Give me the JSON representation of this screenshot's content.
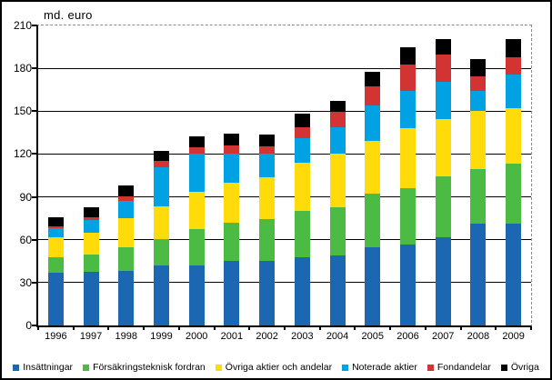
{
  "title": "md. euro",
  "colors": {
    "insattningar": "#1B67B2",
    "forsakringsteknisk_fordran": "#4CBB44",
    "ovriga_aktier_och_andelar": "#FFDB0A",
    "noterade_aktier": "#00A2E4",
    "fondandelar": "#D23434",
    "ovriga": "#000000",
    "gridline": "#000000",
    "plot_dashed_border": "#8C8C8C"
  },
  "chart_data": {
    "type": "bar",
    "stacked": true,
    "title": "md. euro",
    "xlabel": "",
    "ylabel": "md. euro",
    "ylim": [
      0,
      210
    ],
    "yticks": [
      0,
      30,
      60,
      90,
      120,
      150,
      180,
      210
    ],
    "grid": true,
    "legend_position": "bottom",
    "categories": [
      "1996",
      "1997",
      "1998",
      "1999",
      "2000",
      "2001",
      "2002",
      "2003",
      "2004",
      "2005",
      "2006",
      "2007",
      "2008",
      "2009"
    ],
    "series": [
      {
        "name": "Insättningar",
        "color": "#1B67B2",
        "values": [
          37,
          37.5,
          38,
          42,
          42,
          45,
          45.5,
          48,
          49,
          54.5,
          56.5,
          62,
          71,
          71.5
        ]
      },
      {
        "name": "Försäkringsteknisk fordran",
        "color": "#4CBB44",
        "values": [
          10.5,
          12,
          16.5,
          18.5,
          25.5,
          27,
          29,
          32,
          34,
          37.5,
          39.5,
          42.5,
          38.5,
          41.5
        ]
      },
      {
        "name": "Övriga aktier och andelar",
        "color": "#FFDB0A",
        "values": [
          14,
          15.5,
          20.5,
          23,
          26,
          28,
          29,
          34,
          37,
          37,
          42,
          40,
          40.5,
          39
        ]
      },
      {
        "name": "Noterade aktier",
        "color": "#00A2E4",
        "values": [
          6.5,
          9,
          12.5,
          27.5,
          26.5,
          20.5,
          16.5,
          17,
          19,
          25,
          26.5,
          26,
          14.5,
          23.5
        ]
      },
      {
        "name": "Fondandelar",
        "color": "#D23434",
        "values": [
          1.5,
          1.5,
          3,
          4,
          4.5,
          5.5,
          5.5,
          7.5,
          10.5,
          13.5,
          18,
          19,
          10,
          12.5
        ]
      },
      {
        "name": "Övriga",
        "color": "#000000",
        "values": [
          6.5,
          7,
          7.5,
          7.5,
          8,
          8,
          8,
          9.5,
          8,
          10,
          12.5,
          11,
          12,
          12.5
        ]
      }
    ]
  }
}
